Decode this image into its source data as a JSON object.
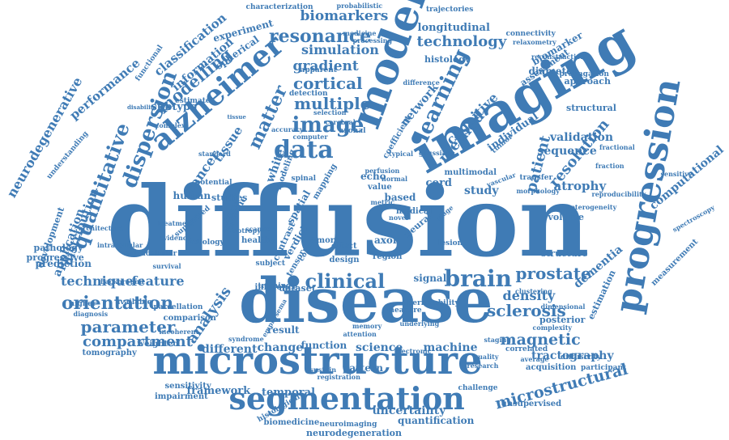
{
  "palette": {
    "word": "#3f7bb5",
    "background": "#ffffff"
  },
  "words": [
    "diffusion",
    "disease",
    "microstructure",
    "imaging",
    "model",
    "progression",
    "segmentation",
    "alzheimer",
    "data",
    "image",
    "dispersion",
    "quantitative",
    "resonance",
    "brain",
    "learning",
    "clinical",
    "prostate",
    "orientation",
    "multiple",
    "matter",
    "cortical",
    "parameter",
    "analysis",
    "sclerosis",
    "technology",
    "biomarkers",
    "magnetic",
    "tractography",
    "microstructural",
    "patient",
    "resolution",
    "atrophy",
    "method",
    "density",
    "compartment",
    "technique",
    "feature",
    "gradient",
    "modelling",
    "simulation",
    "cognitive",
    "network",
    "validation",
    "sequence",
    "longitudinal",
    "classification",
    "information",
    "experiment",
    "neurodegenerative",
    "distribution",
    "application",
    "cancer",
    "tissue",
    "white",
    "subtype",
    "uncertainty",
    "quantification",
    "framework",
    "temporal",
    "science",
    "machine",
    "change",
    "different",
    "result",
    "function",
    "pattern",
    "human",
    "studies",
    "dataset",
    "inference",
    "signal",
    "computational",
    "spectroscopy",
    "measurement",
    "dementia",
    "estimation",
    "structure",
    "volume",
    "approach",
    "diameter",
    "histology",
    "connectivity",
    "biomarker",
    "transfer",
    "characterization",
    "probabilistic",
    "trajectories",
    "unsupervised",
    "acquisition",
    "participant",
    "challenge",
    "neurodegeneration",
    "biomedicine",
    "neuroimaging",
    "histological",
    "registration",
    "sensitivity",
    "impairment",
    "tomography",
    "weighted",
    "diagnosis",
    "prediction",
    "progressive",
    "pathology",
    "development",
    "performance",
    "understanding",
    "potential",
    "specific",
    "healthy",
    "contrast",
    "verdict",
    "spatial",
    "axon",
    "region",
    "neural",
    "lesion",
    "medical",
    "study",
    "cord",
    "based",
    "value",
    "echo",
    "more",
    "effect",
    "design",
    "tensor",
    "cohort",
    "spinal",
    "mapping",
    "modeling",
    "estimate",
    "spherical",
    "individual",
    "structural",
    "coefficient",
    "assessment",
    "reconstruction",
    "propagation",
    "relaxometry",
    "processing",
    "medicine",
    "difference",
    "apparent",
    "detection",
    "selection",
    "cerebral",
    "computer",
    "accuracy",
    "standard",
    "comparison",
    "parcellation",
    "available",
    "higher",
    "training",
    "measure",
    "permeability",
    "posterior",
    "diffusivity",
    "correlated",
    "staging",
    "average",
    "quality",
    "research",
    "multimodal",
    "fraction",
    "background",
    "treatment",
    "intracellular",
    "extracellular",
    "functional",
    "disability",
    "complex",
    "tissue",
    "axonal",
    "cross",
    "metric",
    "novel",
    "normal",
    "typical",
    "gaussian",
    "vascular",
    "morphology",
    "reproducibility",
    "sensitive",
    "fractional",
    "heterogeneity",
    "clustering",
    "dimensional",
    "complexity",
    "underlying",
    "incoherent",
    "syndrome",
    "attention",
    "electronic",
    "sustain",
    "anisotropy",
    "emphysema",
    "survival",
    "evidence",
    "architecture",
    "radiology",
    "supervised",
    "scanner",
    "subject",
    "memory",
    "perfusion",
    "tumor",
    "stage"
  ]
}
